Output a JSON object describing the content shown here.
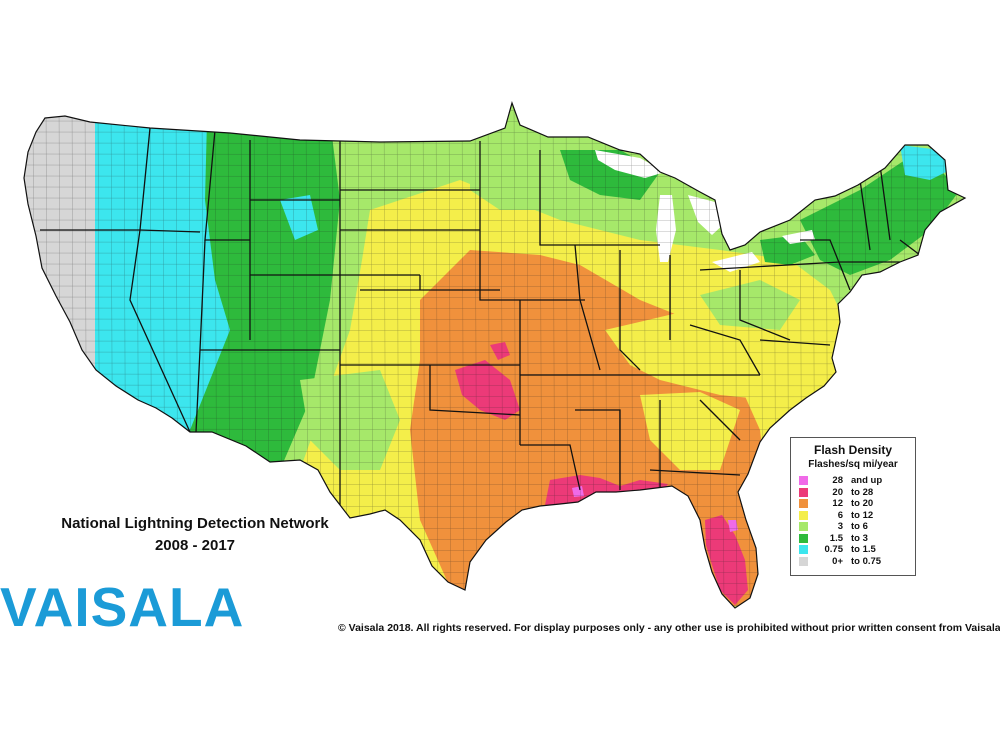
{
  "map": {
    "title_line1": "National Lightning Detection Network",
    "title_line2": "2008 - 2017",
    "brand": "VAISALA",
    "copyright": "© Vaisala 2018. All rights reserved. For display purposes only - any other use is prohibited without prior written consent from Vaisala."
  },
  "legend": {
    "title": "Flash Density",
    "subtitle": "Flashes/sq mi/year",
    "items": [
      {
        "low": "28",
        "high": "and up",
        "color": "#f06ae8"
      },
      {
        "low": "20",
        "high": "to 28",
        "color": "#ec3a78"
      },
      {
        "low": "12",
        "high": "to 20",
        "color": "#f0913c"
      },
      {
        "low": "6",
        "high": "to 12",
        "color": "#f4ee4a"
      },
      {
        "low": "3",
        "high": "to 6",
        "color": "#a6e86a"
      },
      {
        "low": "1.5",
        "high": "to 3",
        "color": "#2eba3c"
      },
      {
        "low": "0.75",
        "high": "to 1.5",
        "color": "#3ce6ee"
      },
      {
        "low": "0+",
        "high": "to 0.75",
        "color": "#d6d6d6"
      }
    ]
  },
  "colors": {
    "brand": "#1b9bd7",
    "state_border": "#111111"
  }
}
